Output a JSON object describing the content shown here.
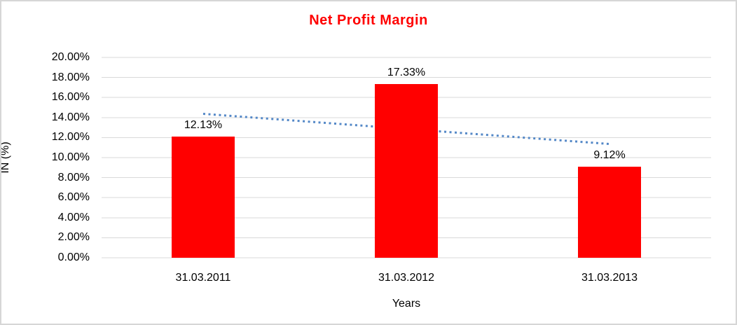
{
  "window": {
    "background_color": "#ffffff",
    "border_color": "#d6d6d6"
  },
  "chart_data": {
    "type": "bar",
    "title": "Net Profit Margin",
    "title_color": "#ff0000",
    "xlabel": "Years",
    "ylabel": "IN (%)",
    "categories": [
      "31.03.2011",
      "31.03.2012",
      "31.03.2013"
    ],
    "values": [
      12.13,
      17.33,
      9.12
    ],
    "value_labels": [
      "12.13%",
      "17.33%",
      "9.12%"
    ],
    "bar_color": "#ff0000",
    "ylim": [
      0,
      20
    ],
    "ytick_step": 2,
    "ytick_labels": [
      "0.00%",
      "2.00%",
      "4.00%",
      "6.00%",
      "8.00%",
      "10.00%",
      "12.00%",
      "14.00%",
      "16.00%",
      "18.00%",
      "20.00%"
    ],
    "grid": true,
    "gridline_color": "#d9d9d9",
    "legend": "none",
    "trendline": {
      "type": "linear",
      "style": "dotted",
      "color": "#5488c7",
      "start_value": 14.37,
      "end_value": 11.36
    }
  }
}
